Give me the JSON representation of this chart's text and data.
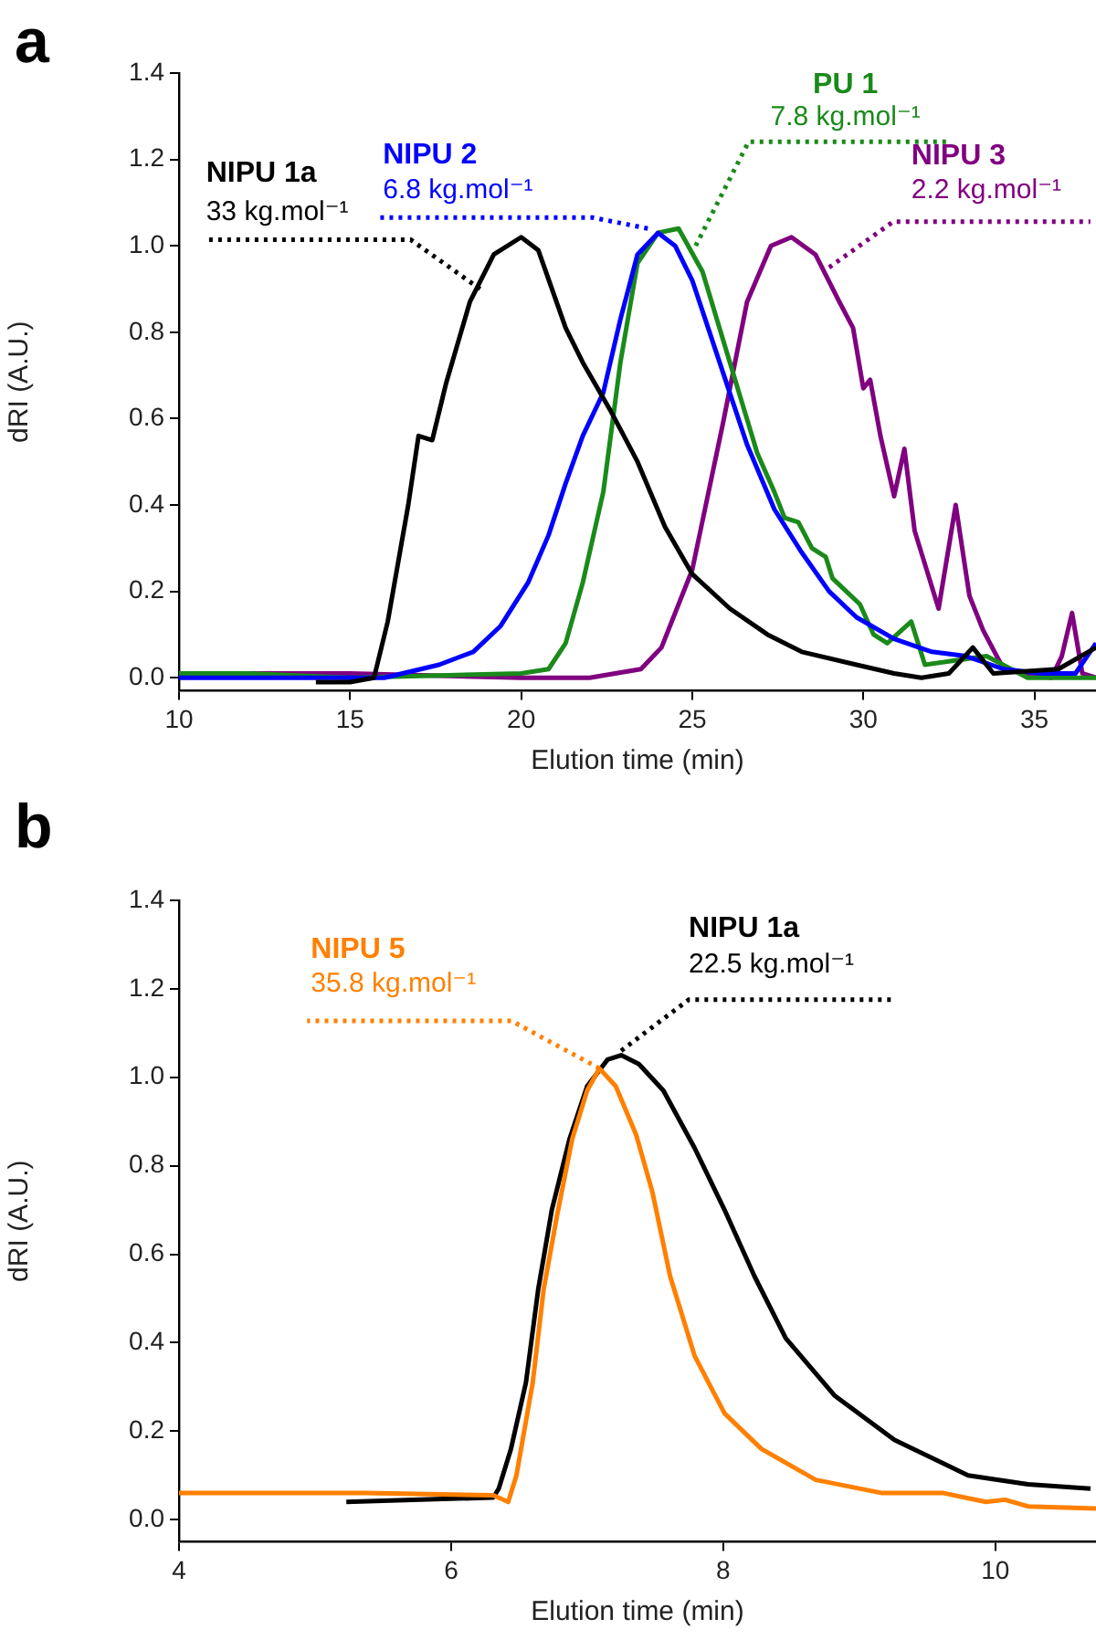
{
  "chart_data": [
    {
      "type": "line",
      "title": "a",
      "xlabel": "Elution time (min)",
      "ylabel": "dRI (A.U.)",
      "xlim": [
        10,
        36.8
      ],
      "ylim": [
        -0.03,
        1.4
      ],
      "xticks": [
        10,
        15,
        20,
        25,
        30,
        35
      ],
      "yticks": [
        {
          "value": 0,
          "label": "0.0"
        },
        {
          "value": 0.2,
          "label": "0.2"
        },
        {
          "value": 0.4,
          "label": "0.4"
        },
        {
          "value": 0.6,
          "label": "0.6"
        },
        {
          "value": 0.8,
          "label": "0.8"
        },
        {
          "value": 1,
          "label": "1.0"
        },
        {
          "value": 1.2,
          "label": "1.2"
        },
        {
          "value": 1.4,
          "label": "1.4"
        }
      ],
      "legend": false,
      "marker": "none",
      "line_style": "solid",
      "series": [
        {
          "name": "NIPU 1a",
          "color": "#000000",
          "x": [
            14.0,
            15.0,
            15.7,
            16.1,
            16.7,
            17.0,
            17.4,
            17.8,
            18.5,
            19.2,
            20.0,
            20.5,
            21.3,
            21.8,
            22.6,
            23.4,
            24.2,
            25.0,
            26.1,
            27.2,
            28.2,
            29.8,
            30.9,
            31.7,
            32.5,
            33.2,
            33.8,
            35.7,
            36.8
          ],
          "values": [
            -0.01,
            -0.01,
            0.0,
            0.13,
            0.4,
            0.56,
            0.55,
            0.68,
            0.87,
            0.98,
            1.02,
            0.99,
            0.81,
            0.73,
            0.62,
            0.5,
            0.35,
            0.24,
            0.16,
            0.1,
            0.06,
            0.03,
            0.01,
            0.0,
            0.01,
            0.07,
            0.01,
            0.02,
            0.07
          ]
        },
        {
          "name": "NIPU 2",
          "color": "#0000ff",
          "x": [
            10,
            14,
            16,
            17.6,
            18.6,
            19.4,
            20.2,
            20.8,
            21.3,
            21.8,
            22.4,
            22.9,
            23.4,
            24.0,
            24.5,
            25.0,
            25.8,
            26.6,
            27.4,
            28.2,
            29.0,
            29.8,
            30.9,
            32.0,
            33.0,
            34.1,
            35.2,
            36.2,
            36.8
          ],
          "values": [
            0.0,
            0.0,
            0.0,
            0.03,
            0.06,
            0.12,
            0.22,
            0.33,
            0.45,
            0.56,
            0.66,
            0.83,
            0.98,
            1.03,
            1.0,
            0.92,
            0.73,
            0.54,
            0.39,
            0.29,
            0.2,
            0.14,
            0.09,
            0.06,
            0.05,
            0.02,
            0.01,
            0.01,
            0.08
          ]
        },
        {
          "name": "PU 1",
          "color": "#1a8a1a",
          "x": [
            10,
            12,
            15,
            20,
            20.8,
            21.3,
            21.8,
            22.4,
            22.9,
            23.4,
            24.0,
            24.6,
            25.3,
            26.1,
            26.9,
            27.4,
            27.7,
            28.1,
            28.5,
            28.9,
            29.1,
            29.9,
            30.3,
            30.7,
            31.4,
            31.8,
            33.6,
            34.8,
            36.8
          ],
          "values": [
            0.01,
            0.01,
            0.0,
            0.01,
            0.02,
            0.08,
            0.22,
            0.43,
            0.73,
            0.96,
            1.03,
            1.04,
            0.94,
            0.73,
            0.52,
            0.43,
            0.37,
            0.36,
            0.3,
            0.28,
            0.23,
            0.17,
            0.1,
            0.08,
            0.13,
            0.03,
            0.05,
            0.0,
            0.0
          ]
        },
        {
          "name": "NIPU 3",
          "color": "#800080",
          "x": [
            10,
            15,
            20,
            22,
            23.5,
            24.1,
            25.0,
            25.9,
            26.6,
            27.3,
            27.9,
            28.6,
            29.3,
            29.7,
            30.0,
            30.2,
            30.5,
            30.9,
            31.2,
            31.5,
            32.2,
            32.7,
            33.1,
            33.5,
            34.1,
            35.5,
            35.8,
            36.1,
            36.4,
            36.8
          ],
          "values": [
            0.01,
            0.01,
            0.0,
            0.0,
            0.02,
            0.07,
            0.25,
            0.59,
            0.87,
            1.0,
            1.02,
            0.98,
            0.87,
            0.81,
            0.67,
            0.69,
            0.56,
            0.42,
            0.53,
            0.34,
            0.16,
            0.4,
            0.19,
            0.11,
            0.02,
            0.0,
            0.05,
            0.15,
            0.01,
            0.0
          ]
        }
      ],
      "annotations": [
        {
          "text": "33 kg.mol⁻¹",
          "x": 18.8,
          "y": 0.9
        },
        {
          "text": "6.8 kg.mol⁻¹",
          "x": 23.7,
          "y": 1.04
        },
        {
          "text": "7.8 kg.mol⁻¹",
          "x": 25.1,
          "y": 1.0
        },
        {
          "text": "2.2 kg.mol⁻¹",
          "x": 29.0,
          "y": 0.95
        }
      ]
    },
    {
      "type": "line",
      "title": "b",
      "xlabel": "Elution time (min)",
      "ylabel": "dRI (A.U.)",
      "xlim": [
        4,
        10.74
      ],
      "ylim": [
        -0.05,
        1.4
      ],
      "xticks": [
        4,
        6,
        8,
        10
      ],
      "yticks": [
        {
          "value": 0,
          "label": "0.0"
        },
        {
          "value": 0.2,
          "label": "0.2"
        },
        {
          "value": 0.4,
          "label": "0.4"
        },
        {
          "value": 0.6,
          "label": "0.6"
        },
        {
          "value": 0.8,
          "label": "0.8"
        },
        {
          "value": 1,
          "label": "1.0"
        },
        {
          "value": 1.2,
          "label": "1.2"
        },
        {
          "value": 1.4,
          "label": "1.4"
        }
      ],
      "legend": false,
      "marker": "none",
      "line_style": "solid",
      "series": [
        {
          "name": "NIPU 5",
          "color": "#ff8000",
          "x": [
            4,
            5.37,
            6.31,
            6.42,
            6.48,
            6.6,
            6.68,
            6.78,
            6.89,
            7.0,
            7.09,
            7.21,
            7.36,
            7.48,
            7.61,
            7.79,
            8.01,
            8.28,
            8.68,
            9.17,
            9.62,
            9.93,
            10.07,
            10.24,
            10.74
          ],
          "values": [
            0.06,
            0.06,
            0.055,
            0.04,
            0.1,
            0.31,
            0.52,
            0.69,
            0.86,
            0.97,
            1.02,
            0.98,
            0.87,
            0.74,
            0.55,
            0.37,
            0.24,
            0.16,
            0.09,
            0.06,
            0.06,
            0.04,
            0.045,
            0.03,
            0.025
          ]
        },
        {
          "name": "NIPU 1a",
          "color": "#000000",
          "x": [
            5.23,
            6.31,
            6.35,
            6.44,
            6.55,
            6.64,
            6.74,
            6.87,
            7.0,
            7.15,
            7.25,
            7.38,
            7.56,
            7.79,
            8.01,
            8.23,
            8.46,
            8.82,
            9.26,
            9.8,
            10.24,
            10.7
          ],
          "values": [
            0.04,
            0.05,
            0.07,
            0.16,
            0.31,
            0.52,
            0.7,
            0.86,
            0.98,
            1.04,
            1.05,
            1.03,
            0.97,
            0.84,
            0.7,
            0.55,
            0.41,
            0.28,
            0.18,
            0.1,
            0.08,
            0.07
          ]
        }
      ],
      "annotations": [
        {
          "text": "35.8 kg.mol⁻¹",
          "x": 7.09,
          "y": 1.02
        },
        {
          "text": "22.5 kg.mol⁻¹",
          "x": 7.25,
          "y": 1.06
        }
      ]
    }
  ]
}
